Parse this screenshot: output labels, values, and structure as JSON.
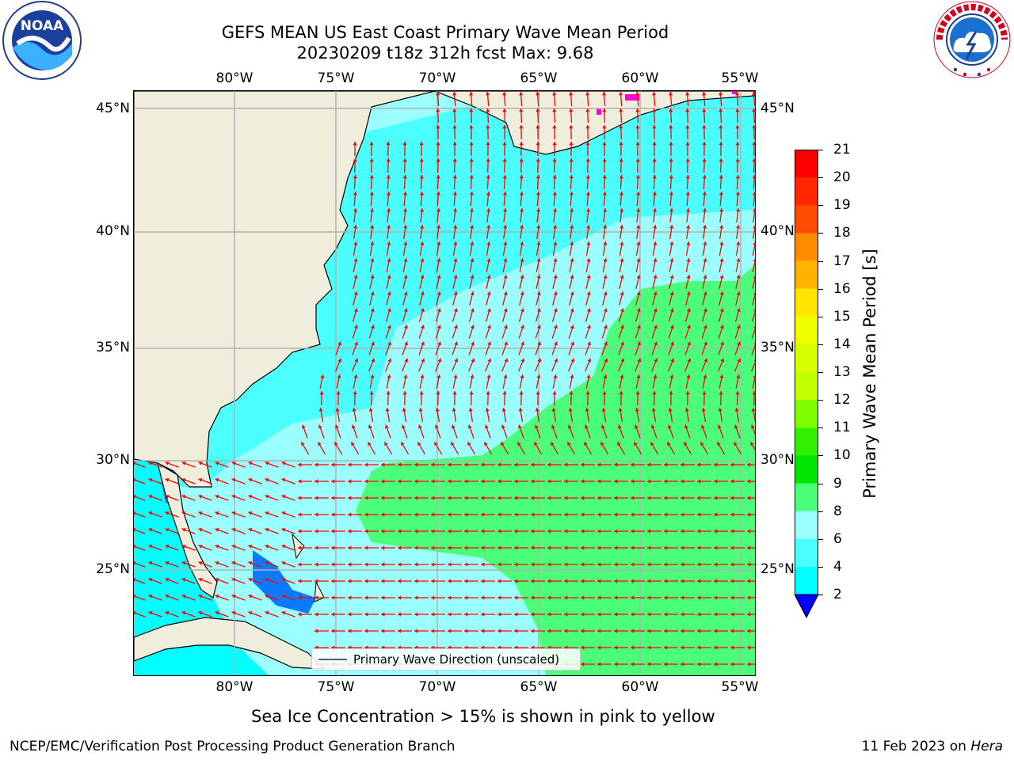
{
  "title": {
    "line1": "GEFS MEAN US East Coast Primary Wave Mean Period",
    "line2": "20230209 t18z 312h fcst   Max: 9.68"
  },
  "map": {
    "lon_labels": [
      "80°W",
      "75°W",
      "70°W",
      "65°W",
      "60°W",
      "55°W"
    ],
    "lat_labels": [
      "45°N",
      "40°N",
      "35°N",
      "30°N",
      "25°N"
    ],
    "lon_range": [
      -85,
      -54
    ],
    "lat_range": [
      20.5,
      46
    ],
    "legend_label": "Primary Wave Direction (unscaled)",
    "colors": {
      "land": "#efeedd",
      "ocean_4_6": "#00ffff",
      "ocean_6_8": "#4cffff",
      "ocean_8_9": "#9cffff",
      "ocean_9_10": "#4cff7a",
      "ocean_2_4": "#0a7bff",
      "arrow": "#ff0000",
      "grid": "#b0b0b0",
      "ice": "#ff00d4"
    }
  },
  "colorbar": {
    "label": "Primary Wave Mean Period [s]",
    "ticks": [
      "21",
      "20",
      "19",
      "18",
      "17",
      "16",
      "15",
      "14",
      "13",
      "12",
      "11",
      "10",
      "9",
      "8",
      "6",
      "4",
      "2"
    ],
    "colors": [
      "#ff0000",
      "#ff2600",
      "#ff4c00",
      "#ff6f00",
      "#ff9100",
      "#ffb400",
      "#ffd600",
      "#fff800",
      "#e4ff00",
      "#c2ff00",
      "#7fff00",
      "#30f000",
      "#00ef00",
      "#4cff7a",
      "#9cffff",
      "#4cffff",
      "#00ffff",
      "#0a7bff"
    ],
    "extend_color": "#0000ff"
  },
  "subtitle": "Sea Ice Concentration > 15% is shown in pink to yellow",
  "footer": {
    "left": "NCEP/EMC/Verification Post Processing Product Generation Branch",
    "right_date": "11 Feb 2023 on",
    "right_host": "Hera"
  },
  "logos": {
    "noaa_text": "NOAA",
    "nws_text": "NATIONAL WEATHER SERVICE"
  }
}
